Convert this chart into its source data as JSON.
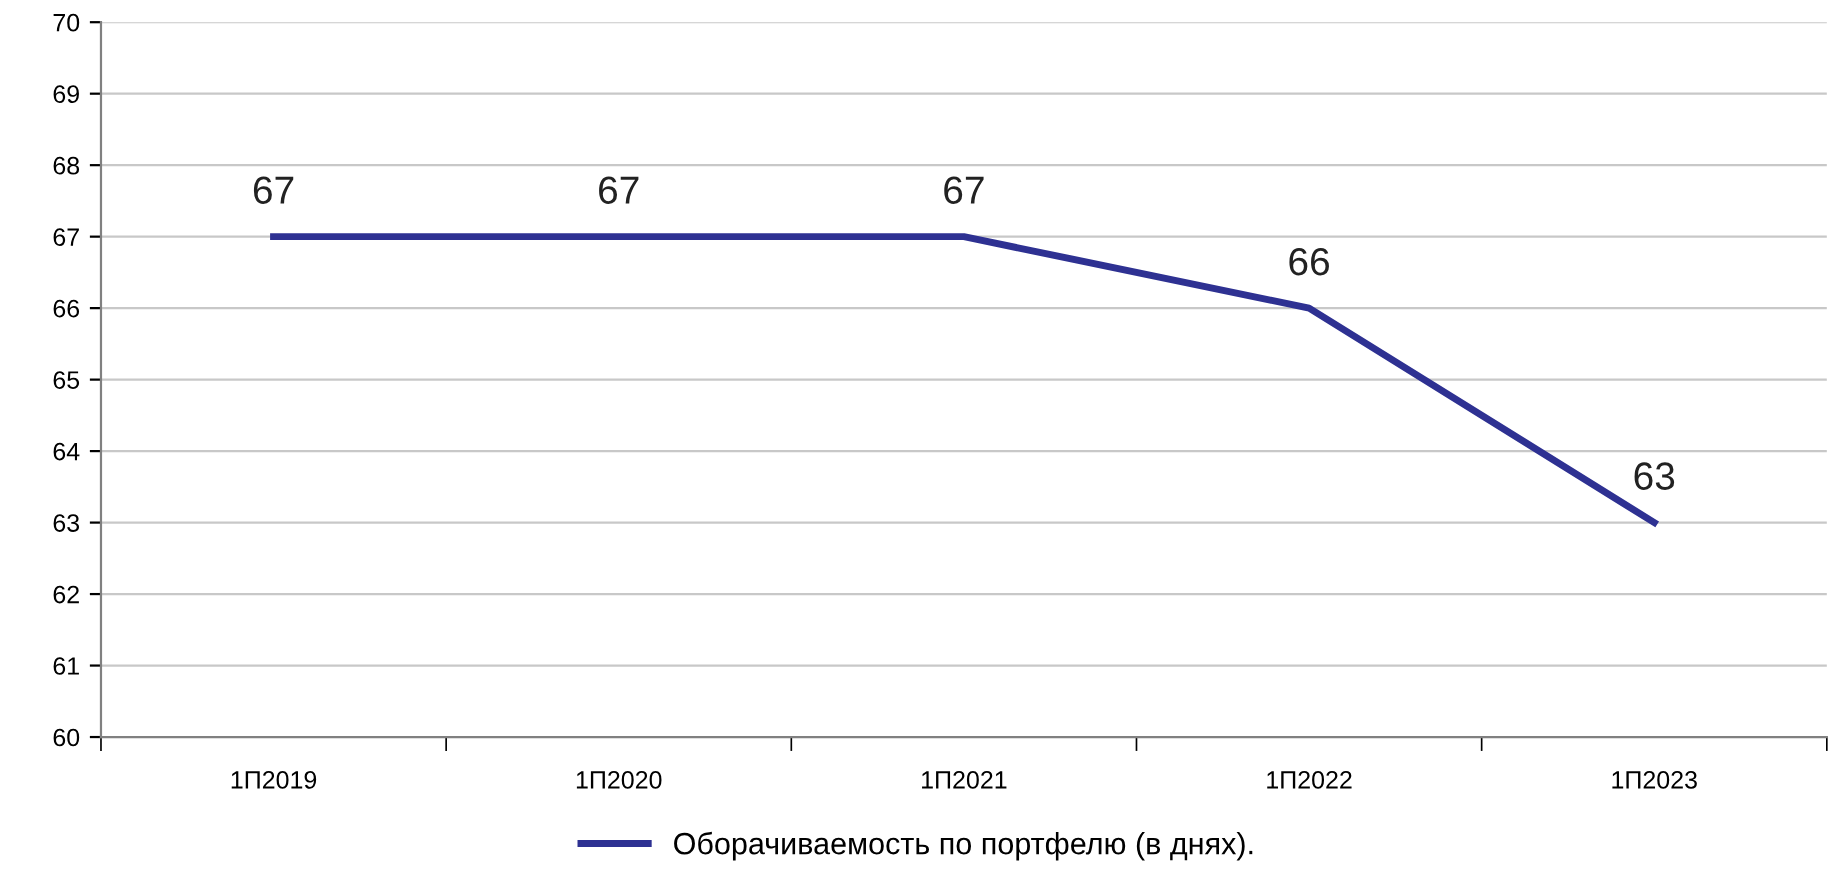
{
  "chart_data": {
    "type": "line",
    "categories": [
      "1П2019",
      "1П2020",
      "1П2021",
      "1П2022",
      "1П2023"
    ],
    "series": [
      {
        "name": "Оборачиваемость по портфелю (в днях).",
        "color": "#2e3192",
        "values": [
          67,
          67,
          67,
          66,
          63
        ]
      }
    ],
    "ylim": [
      60,
      70
    ],
    "yticks": [
      60,
      61,
      62,
      63,
      64,
      65,
      66,
      67,
      68,
      69,
      70
    ],
    "grid": "y",
    "legend": "bottom",
    "data_labels": true,
    "marker": "none",
    "line_style": "solid"
  }
}
